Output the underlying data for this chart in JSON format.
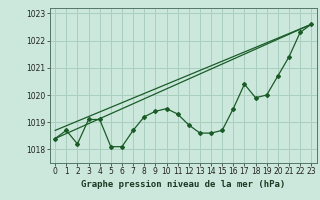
{
  "xlabel": "Graphe pression niveau de la mer (hPa)",
  "ylim": [
    1017.5,
    1023.2
  ],
  "xlim": [
    -0.5,
    23.5
  ],
  "yticks": [
    1018,
    1019,
    1020,
    1021,
    1022,
    1023
  ],
  "xticks": [
    0,
    1,
    2,
    3,
    4,
    5,
    6,
    7,
    8,
    9,
    10,
    11,
    12,
    13,
    14,
    15,
    16,
    17,
    18,
    19,
    20,
    21,
    22,
    23
  ],
  "background_color": "#cce8dc",
  "grid_color": "#aacfbe",
  "line_color": "#1a5c28",
  "line1_x": [
    0,
    1,
    2,
    3,
    4,
    5,
    6,
    7,
    8,
    9,
    10,
    11,
    12,
    13,
    14,
    15,
    16,
    17,
    18,
    19,
    20,
    21,
    22,
    23
  ],
  "line1_y": [
    1018.4,
    1018.7,
    1018.2,
    1019.1,
    1019.1,
    1018.1,
    1018.1,
    1018.7,
    1019.2,
    1019.4,
    1019.5,
    1019.3,
    1018.9,
    1018.6,
    1018.6,
    1018.7,
    1019.5,
    1020.4,
    1019.9,
    1020.0,
    1020.7,
    1021.4,
    1022.3,
    1022.6
  ],
  "line2_x": [
    0,
    23
  ],
  "line2_y": [
    1018.4,
    1022.6
  ],
  "line3_x": [
    0,
    23
  ],
  "line3_y": [
    1018.7,
    1022.6
  ],
  "tick_fontsize": 5.5,
  "xlabel_fontsize": 6.5,
  "marker": "D",
  "markersize": 2.0
}
